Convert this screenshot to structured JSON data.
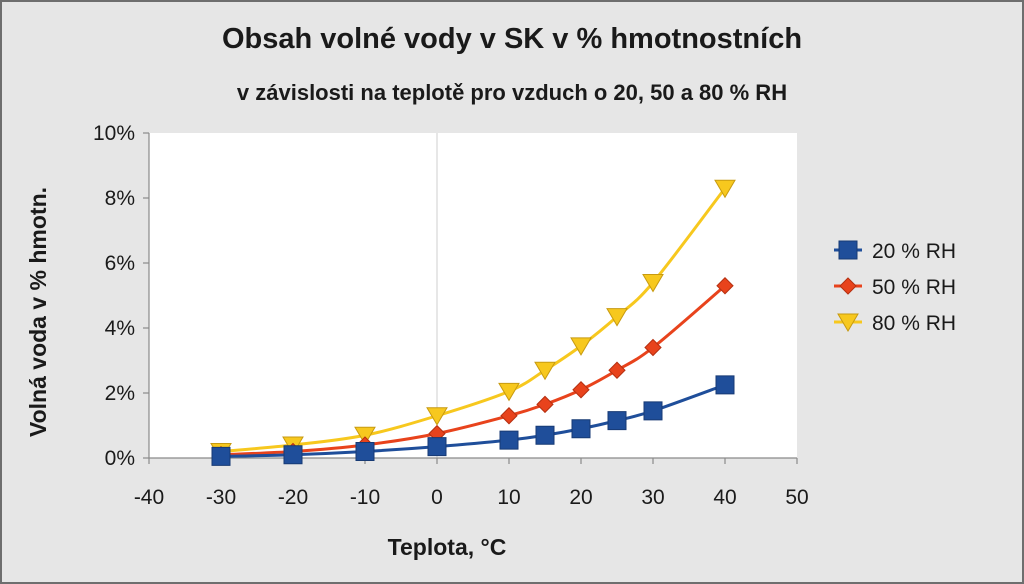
{
  "chart_data": {
    "type": "line",
    "title": "Obsah volné vody v SK v % hmotnostních",
    "subtitle": "v závislosti na teplotě pro vzduch o 20, 50 a 80 % RH",
    "xlabel": "Teplota, °C",
    "ylabel": "Volná voda v % hmotn.",
    "xlim": [
      -40,
      50
    ],
    "ylim": [
      0,
      10
    ],
    "xticks": [
      "-40",
      "-30",
      "-20",
      "-10",
      "0",
      "10",
      "20",
      "30",
      "40",
      "50"
    ],
    "yticks": [
      "0%",
      "2%",
      "4%",
      "6%",
      "8%",
      "10%"
    ],
    "grid": "vertical line at x = 0",
    "legend_position": "right",
    "x": [
      -30,
      -20,
      -10,
      0,
      10,
      15,
      20,
      25,
      30,
      40
    ],
    "series": [
      {
        "name": "20 % RH",
        "values": [
          0.05,
          0.1,
          0.2,
          0.35,
          0.55,
          0.7,
          0.9,
          1.15,
          1.45,
          2.25
        ],
        "color": "#1f4e9a",
        "marker": "square"
      },
      {
        "name": "50 % RH",
        "values": [
          0.1,
          0.2,
          0.4,
          0.75,
          1.3,
          1.65,
          2.1,
          2.7,
          3.4,
          5.3
        ],
        "color": "#e8431c",
        "marker": "diamond"
      },
      {
        "name": "80 % RH",
        "values": [
          0.2,
          0.4,
          0.7,
          1.3,
          2.05,
          2.7,
          3.45,
          4.35,
          5.4,
          8.3
        ],
        "color": "#f7c81e",
        "marker": "triangle-down"
      }
    ]
  }
}
